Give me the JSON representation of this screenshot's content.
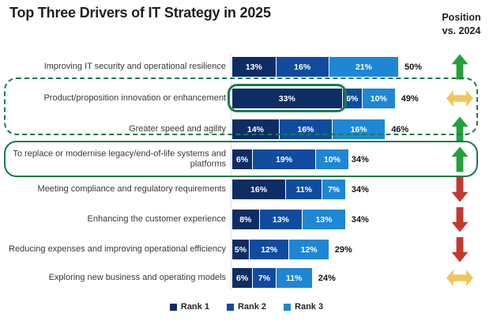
{
  "title": "Top Three Drivers of IT Strategy in 2025",
  "position_header": {
    "line1": "Position",
    "line2": "vs. 2024"
  },
  "chart_data": {
    "type": "bar",
    "orientation": "horizontal",
    "stacked": true,
    "unit": "percent",
    "xlim": [
      0,
      50
    ],
    "legend_position": "bottom",
    "categories": [
      "Improving IT security and operational resilience",
      "Product/proposition innovation or enhancement",
      "Greater speed and agility",
      "To replace or modernise legacy/end-of-life systems and platforms",
      "Meeting compliance and regulatory requirements",
      "Enhancing the customer experience",
      "Reducing expenses and improving operational efficiency",
      "Exploring new business and operating models"
    ],
    "series": [
      {
        "name": "Rank 1",
        "color": "#0E2D64",
        "values": [
          13,
          33,
          14,
          6,
          16,
          8,
          5,
          6
        ],
        "value_labels": [
          "13%",
          "33%",
          "14%",
          "6%",
          "16%",
          "8%",
          "5%",
          "6%"
        ]
      },
      {
        "name": "Rank 2",
        "color": "#0F4C9F",
        "values": [
          16,
          6,
          16,
          19,
          11,
          13,
          12,
          7
        ],
        "value_labels": [
          "16%",
          "6%",
          "16%",
          "19%",
          "11%",
          "13%",
          "12%",
          "7%"
        ]
      },
      {
        "name": "Rank 3",
        "color": "#1E87D5",
        "values": [
          21,
          10,
          16,
          10,
          7,
          13,
          12,
          11
        ],
        "value_labels": [
          "21%",
          "10%",
          "16%",
          "10%",
          "7%",
          "13%",
          "12%",
          "11%"
        ]
      }
    ],
    "totals": [
      50,
      49,
      46,
      34,
      34,
      34,
      29,
      24
    ],
    "total_labels": [
      "50%",
      "49%",
      "46%",
      "34%",
      "34%",
      "34%",
      "29%",
      "24%"
    ],
    "position_vs_2024": [
      "up",
      "same",
      "up",
      "up",
      "down",
      "down",
      "down",
      "same"
    ]
  },
  "annotations": {
    "dashed_box_rows": [
      "Product/proposition innovation or enhancement",
      "Greater speed and agility"
    ],
    "solid_box_row": "To replace or modernise legacy/end-of-life systems and platforms",
    "highlighted_segment": {
      "category": "Product/proposition innovation or enhancement",
      "series": "Rank 1",
      "value_label": "33%"
    }
  },
  "colors": {
    "arrow_up": "#23A13C",
    "arrow_down": "#C3392F",
    "arrow_same": "#EFC75E",
    "highlight_border": "#1B7B4C"
  }
}
